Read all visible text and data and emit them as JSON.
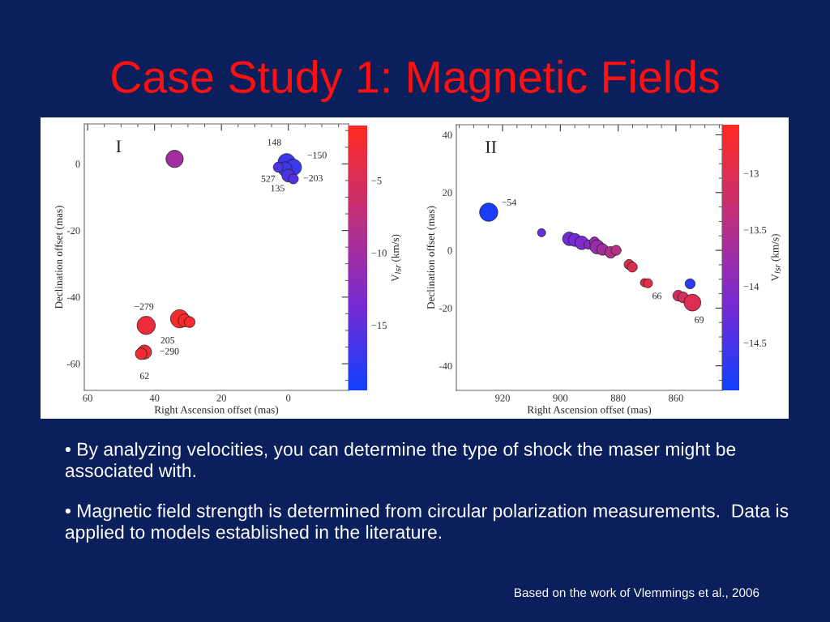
{
  "chart_data": [
    {
      "type": "bubble",
      "title": "Case Study 1: Magnetic Fields",
      "xlabel": "Right Ascension offset (mas)",
      "ylabel": "Declination offset (mas)",
      "clabel": "V$_{lsr}$ (km/s)",
      "marker": "circle",
      "grid": false,
      "x": [
        34,
        0.5,
        -1.5,
        1,
        3,
        0,
        -1.5,
        42.5,
        32.5,
        31,
        29.5,
        43,
        44
      ],
      "values": [
        1.5,
        0.5,
        -1,
        -1.5,
        -1,
        -3.5,
        -4.5,
        -48.5,
        -46.5,
        -47,
        -47.5,
        -56.5,
        -57
      ],
      "sizes": [
        0.9,
        0.9,
        0.8,
        0.6,
        0.3,
        0.5,
        0.3,
        1.0,
        1.0,
        0.5,
        0.35,
        0.6,
        0.4
      ],
      "cvalues": [
        -10,
        -17,
        -17,
        -16.5,
        -16,
        -16,
        -15.5,
        -3,
        -2,
        -2,
        -2,
        -3,
        -2.5
      ],
      "xlim": [
        61,
        -18
      ],
      "ylim": [
        -68,
        12
      ],
      "xticks": [
        60,
        40,
        20,
        0
      ],
      "yticks": [
        0,
        -20,
        -40,
        -60
      ],
      "clim": [
        -19.5,
        -1.2
      ],
      "cticks": [
        -5,
        -10,
        -15
      ],
      "annotations": [
        "I",
        {
          "text": "148",
          "x": 0.5,
          "y": 0.5
        },
        {
          "text": "−150",
          "x": -1.5,
          "y": -1
        },
        {
          "text": "−203",
          "x": 0,
          "y": -3.5
        },
        {
          "text": "527",
          "x": 3,
          "y": -1
        },
        {
          "text": "135",
          "x": -1.5,
          "y": -4.5
        },
        {
          "text": "−279",
          "x": 42.5,
          "y": -48.5
        },
        {
          "text": "205",
          "x": 42.5,
          "y": -48.5
        },
        {
          "text": "−290",
          "x": 43,
          "y": -56.5
        },
        {
          "text": "62",
          "x": 43,
          "y": -56.5
        }
      ]
    },
    {
      "type": "bubble",
      "xlabel": "Right Ascension offset (mas)",
      "ylabel": "Declination offset (mas)",
      "clabel": "V$_{lsr}$ (km/s)",
      "marker": "circle",
      "grid": false,
      "x": [
        924.8,
        906.5,
        896.9,
        895.0,
        892.6,
        890.3,
        888.2,
        887.3,
        885.4,
        882.6,
        880.7,
        876.2,
        875.1,
        870.9,
        869.7,
        855.1,
        859.2,
        857.5,
        854.3
      ],
      "values": [
        13.2,
        6.1,
        4.0,
        3.6,
        2.6,
        2.0,
        2.9,
        1.2,
        0.3,
        -0.7,
        0.0,
        -4.9,
        -5.8,
        -11.2,
        -11.4,
        -11.6,
        -15.7,
        -16.3,
        -18.1
      ],
      "sizes": [
        1.0,
        0.2,
        0.55,
        0.5,
        0.55,
        0.25,
        0.3,
        0.6,
        0.4,
        0.4,
        0.3,
        0.3,
        0.3,
        0.2,
        0.25,
        0.3,
        0.35,
        0.35,
        0.85
      ],
      "cvalues": [
        -14.85,
        -14.3,
        -14.2,
        -14.2,
        -14.1,
        -14.0,
        -13.8,
        -13.8,
        -13.7,
        -13.5,
        -13.4,
        -13.0,
        -13.0,
        -12.9,
        -12.9,
        -14.7,
        -13.1,
        -13.1,
        -13.0
      ],
      "xlim": [
        936,
        844
      ],
      "ylim": [
        -48.5,
        43.5
      ],
      "xticks": [
        920,
        900,
        880,
        860
      ],
      "yticks": [
        40,
        20,
        0,
        -20,
        -40
      ],
      "clim": [
        -14.92,
        -12.57
      ],
      "cticks": [
        -13,
        -13.5,
        -14,
        -14.5
      ],
      "annotations": [
        "II",
        {
          "text": "−54",
          "x": 924.8,
          "y": 13.2
        },
        {
          "text": "66",
          "x": 869.7,
          "y": -11.4
        },
        {
          "text": "69",
          "x": 854.3,
          "y": -18.1
        },
        "• By analyzing velocities, you can determine the type of shock the maser might be associated with.",
        "• Magnetic field strength is determined from circular polarization measurements.  Data is applied to models established in the literature.",
        "Based on the work of Vlemmings et al., 2006"
      ]
    }
  ]
}
